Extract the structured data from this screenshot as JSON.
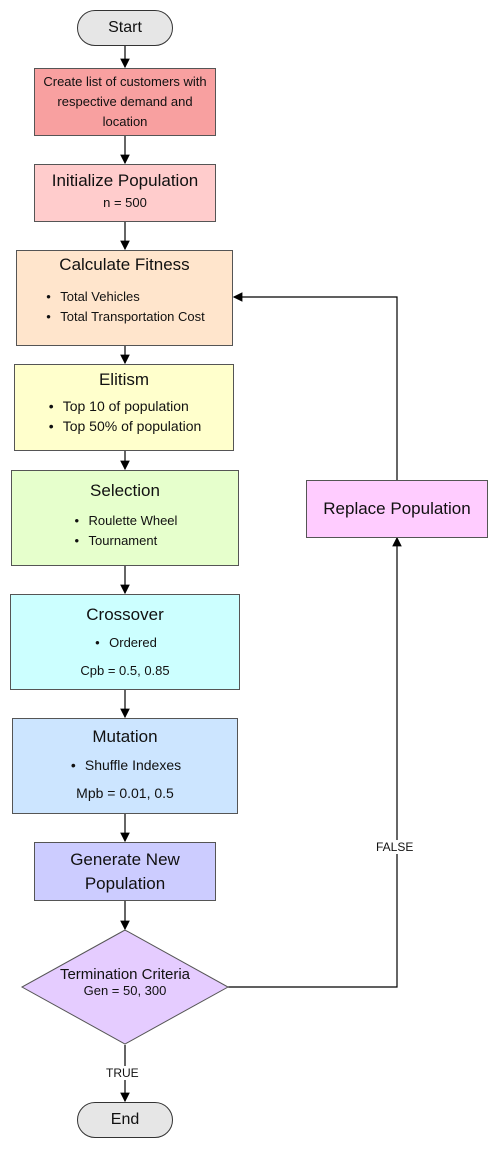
{
  "nodes": {
    "start": {
      "label": "Start"
    },
    "create_list": {
      "label": "Create list of customers with respective demand and location"
    },
    "init_pop": {
      "title": "Initialize Population",
      "param": "n = 500"
    },
    "fitness": {
      "title": "Calculate Fitness",
      "bullets": [
        "Total Vehicles",
        "Total Transportation Cost"
      ]
    },
    "elitism": {
      "title": "Elitism",
      "bullets": [
        "Top 10 of population",
        "Top 50% of population"
      ]
    },
    "selection": {
      "title": "Selection",
      "bullets": [
        "Roulette Wheel",
        "Tournament"
      ]
    },
    "crossover": {
      "title": "Crossover",
      "bullets": [
        "Ordered"
      ],
      "param": "Cpb = 0.5, 0.85"
    },
    "mutation": {
      "title": "Mutation",
      "bullets": [
        "Shuffle Indexes"
      ],
      "param": "Mpb = 0.01, 0.5"
    },
    "generate": {
      "label": "Generate New Population"
    },
    "termination": {
      "title": "Termination Criteria",
      "param": "Gen = 50, 300"
    },
    "replace": {
      "label": "Replace Population"
    },
    "end": {
      "label": "End"
    }
  },
  "edge_labels": {
    "false": "FALSE",
    "true": "TRUE"
  },
  "colors": {
    "create_list": "#f8a0a0",
    "init_pop": "#ffcccc",
    "fitness": "#ffe5cc",
    "elitism": "#ffffcc",
    "selection": "#e6ffcc",
    "crossover": "#ccffff",
    "mutation": "#cce5ff",
    "generate": "#ccccff",
    "termination": "#e5ccff",
    "replace": "#ffccff"
  }
}
